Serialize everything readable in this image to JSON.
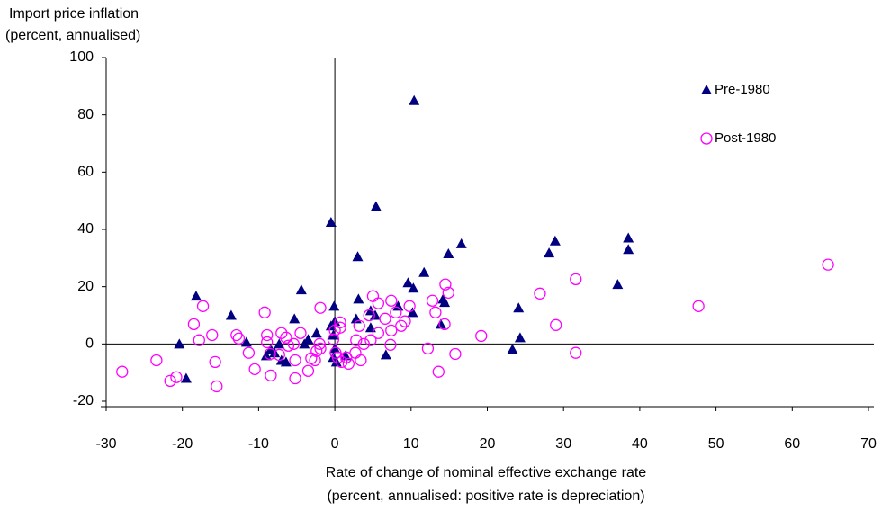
{
  "chart_data": {
    "type": "scatter",
    "ylabel": [
      "Import price inflation",
      "(percent, annualised)"
    ],
    "xlabel": [
      "Rate of change of nominal effective exchange rate",
      "(percent, annualised: positive rate is depreciation)"
    ],
    "xlim": [
      -30,
      70
    ],
    "xticks": [
      -30,
      -20,
      -10,
      0,
      10,
      20,
      30,
      40,
      50,
      60,
      70
    ],
    "ylim": [
      -20,
      100
    ],
    "yticks": [
      -20,
      0,
      20,
      40,
      60,
      80,
      100
    ],
    "legend": "upper-right",
    "series": [
      {
        "name": "Pre-1980",
        "color": "#000080",
        "marker": "triangle",
        "x": [
          10.4,
          5.4,
          -0.5,
          38.5,
          28.9,
          16.6,
          38.5,
          14.9,
          28.1,
          3,
          11.7,
          37.1,
          9.6,
          10.3,
          -18.2,
          -4.4,
          3.1,
          -0.1,
          14.2,
          14.4,
          4.7,
          8.3,
          10.2,
          -13.6,
          -5.3,
          2.8,
          5.3,
          24.1,
          13.9,
          0,
          -0.5,
          4.7,
          -20.4,
          -11.6,
          -7.3,
          -4,
          -3.5,
          -2.4,
          -0.2,
          0,
          -0.2,
          0.2,
          -9,
          -6.4,
          -7,
          1.4,
          6.7,
          24.3,
          23.3,
          -19.5,
          -7.9,
          -8.4
        ],
        "values": [
          85,
          48,
          42.5,
          37,
          36,
          35,
          33,
          31.5,
          31.8,
          30.5,
          25,
          20.8,
          21.4,
          19.5,
          16.7,
          18.9,
          15.7,
          13.2,
          15.7,
          14.5,
          11.6,
          13.2,
          11,
          10,
          8.8,
          8.8,
          10,
          12.6,
          6.9,
          7.9,
          6.3,
          5.7,
          0,
          0.6,
          0,
          0,
          1.6,
          3.8,
          3.1,
          -1.6,
          -4.7,
          -6.3,
          -4.1,
          -6.3,
          -5.7,
          -4.1,
          -3.8,
          2.2,
          -1.9,
          -12,
          -3.1,
          -1.9
        ]
      },
      {
        "name": "Post-1980",
        "color": "#ff00ff",
        "marker": "circle",
        "x": [
          -27.9,
          -23.4,
          -21.6,
          -20.8,
          -18.5,
          -17.8,
          -17.3,
          -15.7,
          -16.1,
          -12.6,
          -12.9,
          -15.5,
          -11.3,
          -10.5,
          -9.2,
          -8.9,
          -8.9,
          -8.4,
          -8.5,
          -7.3,
          -7,
          -6.4,
          -6.1,
          -5.4,
          -5.2,
          -5.2,
          -4.5,
          -3.5,
          -3.1,
          -2.6,
          -2.4,
          -2,
          -1.9,
          -1.9,
          0,
          -0.2,
          0.1,
          0.4,
          0.7,
          0.7,
          0.9,
          1.5,
          1.8,
          2.7,
          2.8,
          3.2,
          3.4,
          3.8,
          4.5,
          4.7,
          5,
          5.7,
          5.7,
          6.6,
          7.3,
          7.4,
          7.4,
          8,
          8.7,
          9.2,
          9.8,
          12.2,
          12.8,
          13.2,
          13.6,
          14.4,
          14.5,
          14.9,
          15.8,
          19.2,
          26.9,
          29,
          31.6,
          31.6,
          47.7,
          64.7
        ],
        "values": [
          -9.7,
          -5.7,
          -12.9,
          -11.6,
          6.9,
          1.3,
          13.2,
          -6.3,
          3.1,
          1.9,
          3.1,
          -14.8,
          -3.1,
          -8.8,
          11,
          3.1,
          0.6,
          -11,
          -3.5,
          -3.8,
          3.8,
          2.2,
          -0.6,
          0,
          -5.7,
          -12,
          3.8,
          -9.4,
          -5,
          -5.7,
          -2.5,
          0,
          12.6,
          -1.6,
          4.7,
          1.6,
          -3.1,
          -4.7,
          7.5,
          5.7,
          -6.3,
          -4.7,
          -6.9,
          -3.1,
          1.3,
          6.3,
          -5.7,
          0,
          10,
          1.3,
          16.7,
          3.8,
          14.2,
          8.8,
          -0.3,
          4.7,
          15.1,
          11,
          6.3,
          7.9,
          13.2,
          -1.6,
          15.1,
          11,
          -9.7,
          6.9,
          20.8,
          17.9,
          -3.5,
          2.8,
          17.6,
          6.6,
          22.6,
          -3.1,
          13.2,
          27.7
        ]
      }
    ]
  }
}
